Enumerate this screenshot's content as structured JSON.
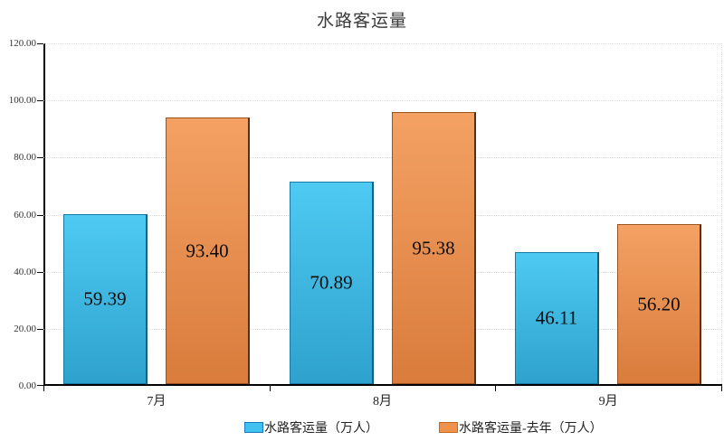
{
  "chart": {
    "title": "水路客运量"
  },
  "chart_data": {
    "type": "bar",
    "title": "水路客运量",
    "categories": [
      "7月",
      "8月",
      "9月"
    ],
    "series": [
      {
        "name": "水路客运量（万人）",
        "values": [
          59.39,
          70.89,
          46.11
        ],
        "labels": [
          "59.39",
          "70.89",
          "46.11"
        ],
        "color_top": "#4ecaf3",
        "color_bottom": "#2ea2cc",
        "border": "#1879a3",
        "edge": "#135e80"
      },
      {
        "name": "水路客运量-去年（万人）",
        "values": [
          93.4,
          95.38,
          56.2
        ],
        "labels": [
          "93.40",
          "95.38",
          "56.20"
        ],
        "color_top": "#f4a164",
        "color_bottom": "#d97c3c",
        "border": "#9a5220",
        "edge": "#5c2d0e"
      }
    ],
    "ylim": [
      0,
      120
    ],
    "y_ticks": [
      {
        "value": 0,
        "label": "0.00"
      },
      {
        "value": 20,
        "label": "20.00"
      },
      {
        "value": 40,
        "label": "40.00"
      },
      {
        "value": 60,
        "label": "60.00"
      },
      {
        "value": 80,
        "label": "80.00"
      },
      {
        "value": 100,
        "label": "100.00"
      },
      {
        "value": 120,
        "label": "120.00"
      }
    ],
    "grid": "dotted-horizontal",
    "legend_position": "bottom"
  },
  "legend": {
    "items": [
      {
        "label": "水路客运量（万人）",
        "color": "#3fc2f0",
        "border": "#1879c0"
      },
      {
        "label": "水路客运量-去年（万人）",
        "color": "#f0914e",
        "border": "#c2671f"
      }
    ]
  }
}
